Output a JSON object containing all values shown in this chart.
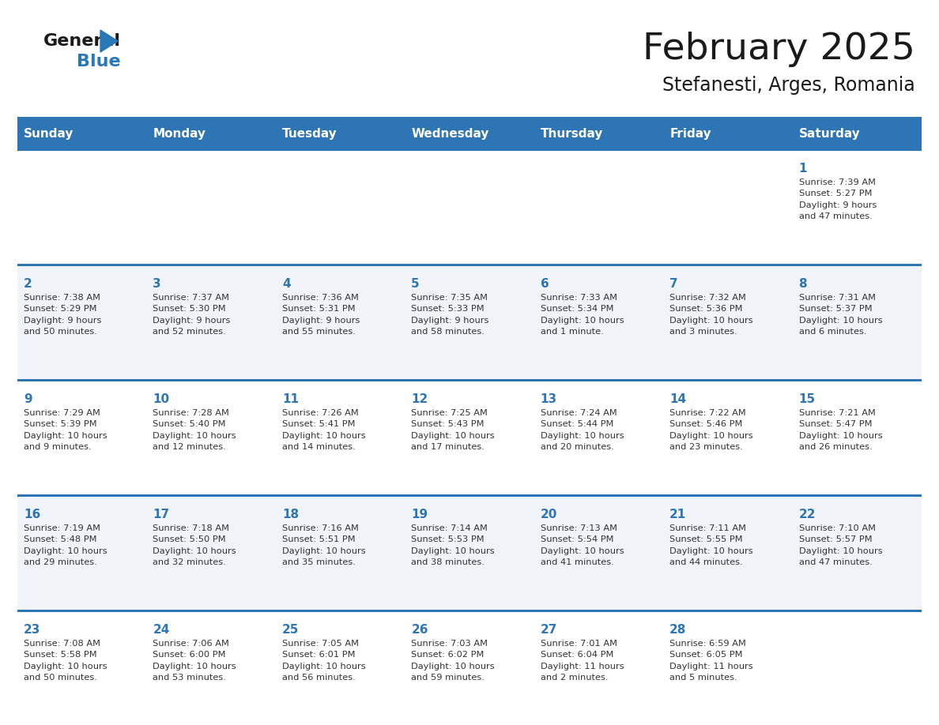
{
  "title": "February 2025",
  "subtitle": "Stefanesti, Arges, Romania",
  "header_bg": "#2E75B6",
  "header_text_color": "#FFFFFF",
  "cell_bg_even": "#FFFFFF",
  "cell_bg_odd": "#F0F4F8",
  "day_number_color": "#2E75B6",
  "text_color": "#333333",
  "border_color": "#2E75B6",
  "days_of_week": [
    "Sunday",
    "Monday",
    "Tuesday",
    "Wednesday",
    "Thursday",
    "Friday",
    "Saturday"
  ],
  "weeks": [
    [
      {
        "day": null,
        "info": null
      },
      {
        "day": null,
        "info": null
      },
      {
        "day": null,
        "info": null
      },
      {
        "day": null,
        "info": null
      },
      {
        "day": null,
        "info": null
      },
      {
        "day": null,
        "info": null
      },
      {
        "day": 1,
        "info": "Sunrise: 7:39 AM\nSunset: 5:27 PM\nDaylight: 9 hours\nand 47 minutes."
      }
    ],
    [
      {
        "day": 2,
        "info": "Sunrise: 7:38 AM\nSunset: 5:29 PM\nDaylight: 9 hours\nand 50 minutes."
      },
      {
        "day": 3,
        "info": "Sunrise: 7:37 AM\nSunset: 5:30 PM\nDaylight: 9 hours\nand 52 minutes."
      },
      {
        "day": 4,
        "info": "Sunrise: 7:36 AM\nSunset: 5:31 PM\nDaylight: 9 hours\nand 55 minutes."
      },
      {
        "day": 5,
        "info": "Sunrise: 7:35 AM\nSunset: 5:33 PM\nDaylight: 9 hours\nand 58 minutes."
      },
      {
        "day": 6,
        "info": "Sunrise: 7:33 AM\nSunset: 5:34 PM\nDaylight: 10 hours\nand 1 minute."
      },
      {
        "day": 7,
        "info": "Sunrise: 7:32 AM\nSunset: 5:36 PM\nDaylight: 10 hours\nand 3 minutes."
      },
      {
        "day": 8,
        "info": "Sunrise: 7:31 AM\nSunset: 5:37 PM\nDaylight: 10 hours\nand 6 minutes."
      }
    ],
    [
      {
        "day": 9,
        "info": "Sunrise: 7:29 AM\nSunset: 5:39 PM\nDaylight: 10 hours\nand 9 minutes."
      },
      {
        "day": 10,
        "info": "Sunrise: 7:28 AM\nSunset: 5:40 PM\nDaylight: 10 hours\nand 12 minutes."
      },
      {
        "day": 11,
        "info": "Sunrise: 7:26 AM\nSunset: 5:41 PM\nDaylight: 10 hours\nand 14 minutes."
      },
      {
        "day": 12,
        "info": "Sunrise: 7:25 AM\nSunset: 5:43 PM\nDaylight: 10 hours\nand 17 minutes."
      },
      {
        "day": 13,
        "info": "Sunrise: 7:24 AM\nSunset: 5:44 PM\nDaylight: 10 hours\nand 20 minutes."
      },
      {
        "day": 14,
        "info": "Sunrise: 7:22 AM\nSunset: 5:46 PM\nDaylight: 10 hours\nand 23 minutes."
      },
      {
        "day": 15,
        "info": "Sunrise: 7:21 AM\nSunset: 5:47 PM\nDaylight: 10 hours\nand 26 minutes."
      }
    ],
    [
      {
        "day": 16,
        "info": "Sunrise: 7:19 AM\nSunset: 5:48 PM\nDaylight: 10 hours\nand 29 minutes."
      },
      {
        "day": 17,
        "info": "Sunrise: 7:18 AM\nSunset: 5:50 PM\nDaylight: 10 hours\nand 32 minutes."
      },
      {
        "day": 18,
        "info": "Sunrise: 7:16 AM\nSunset: 5:51 PM\nDaylight: 10 hours\nand 35 minutes."
      },
      {
        "day": 19,
        "info": "Sunrise: 7:14 AM\nSunset: 5:53 PM\nDaylight: 10 hours\nand 38 minutes."
      },
      {
        "day": 20,
        "info": "Sunrise: 7:13 AM\nSunset: 5:54 PM\nDaylight: 10 hours\nand 41 minutes."
      },
      {
        "day": 21,
        "info": "Sunrise: 7:11 AM\nSunset: 5:55 PM\nDaylight: 10 hours\nand 44 minutes."
      },
      {
        "day": 22,
        "info": "Sunrise: 7:10 AM\nSunset: 5:57 PM\nDaylight: 10 hours\nand 47 minutes."
      }
    ],
    [
      {
        "day": 23,
        "info": "Sunrise: 7:08 AM\nSunset: 5:58 PM\nDaylight: 10 hours\nand 50 minutes."
      },
      {
        "day": 24,
        "info": "Sunrise: 7:06 AM\nSunset: 6:00 PM\nDaylight: 10 hours\nand 53 minutes."
      },
      {
        "day": 25,
        "info": "Sunrise: 7:05 AM\nSunset: 6:01 PM\nDaylight: 10 hours\nand 56 minutes."
      },
      {
        "day": 26,
        "info": "Sunrise: 7:03 AM\nSunset: 6:02 PM\nDaylight: 10 hours\nand 59 minutes."
      },
      {
        "day": 27,
        "info": "Sunrise: 7:01 AM\nSunset: 6:04 PM\nDaylight: 11 hours\nand 2 minutes."
      },
      {
        "day": 28,
        "info": "Sunrise: 6:59 AM\nSunset: 6:05 PM\nDaylight: 11 hours\nand 5 minutes."
      },
      {
        "day": null,
        "info": null
      }
    ]
  ],
  "logo_general_color": "#1a1a1a",
  "logo_blue_color": "#2979B8"
}
